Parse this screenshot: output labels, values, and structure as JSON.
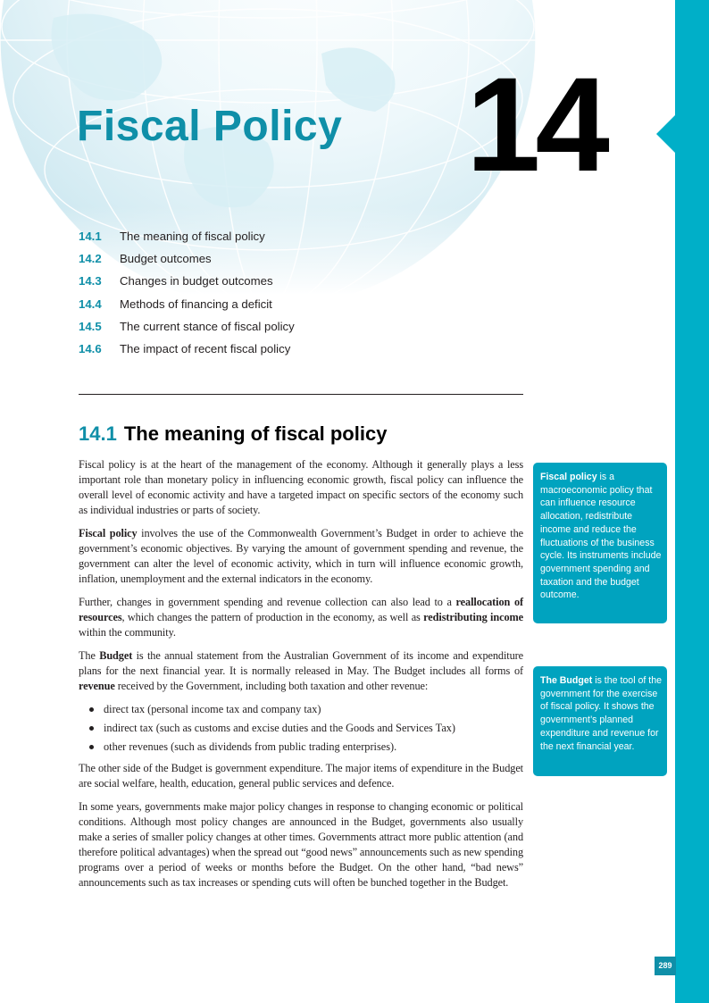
{
  "chapter": {
    "title": "Fiscal Policy",
    "number": "14"
  },
  "toc": [
    {
      "num": "14.1",
      "label": "The meaning of fiscal policy"
    },
    {
      "num": "14.2",
      "label": "Budget outcomes"
    },
    {
      "num": "14.3",
      "label": "Changes in budget outcomes"
    },
    {
      "num": "14.4",
      "label": "Methods of financing a deficit"
    },
    {
      "num": "14.5",
      "label": "The current stance of fiscal policy"
    },
    {
      "num": "14.6",
      "label": "The impact of recent fiscal policy"
    }
  ],
  "section": {
    "num": "14.1",
    "title": "The meaning of fiscal policy"
  },
  "paragraphs": {
    "p1": "Fiscal policy is at the heart of the management of the economy. Although it generally plays a less important role than monetary policy in influencing economic growth, fiscal policy can influence the overall level of economic activity and have a targeted impact on specific sectors of the economy such as individual industries or parts of society.",
    "p2_term": "Fiscal policy",
    "p2_rest": " involves the use of the Commonwealth Government’s Budget in order to achieve the government’s economic objectives. By varying the amount of government spending and revenue, the government can alter the level of economic activity, which in turn will influence economic growth, inflation, unemployment and the external indicators in the economy.",
    "p3_a": "Further, changes in government spending and revenue collection can also lead to a ",
    "p3_b": "reallocation of resources",
    "p3_c": ", which changes the pattern of production in the economy, as well as ",
    "p3_d": "redistributing income",
    "p3_e": " within the community.",
    "p4_a": "The ",
    "p4_b": "Budget",
    "p4_c": " is the annual statement from the Australian Government of its income and expenditure plans for the next financial year. It is normally released in May. The Budget includes all forms of ",
    "p4_d": "revenue",
    "p4_e": " received by the Government, including both taxation and other revenue:",
    "bullets": [
      "direct tax (personal income tax and company tax)",
      "indirect tax (such as customs and excise duties and the Goods and Services Tax)",
      "other revenues (such as dividends from public trading enterprises)."
    ],
    "p5": "The other side of the Budget is government expenditure. The major items of expenditure in the Budget are social welfare, health, education, general public services and defence.",
    "p6": "In some years, governments make major policy changes in response to changing economic or political conditions. Although most policy changes are announced in the Budget, governments also usually make a series of smaller policy changes at other times. Governments attract more public attention (and therefore political advantages) when the spread out “good news” announcements such as new spending programs over a period of weeks or months before the Budget. On the other hand, “bad news” announcements such as tax increases or spending cuts will often be bunched together in the Budget."
  },
  "definitions": [
    {
      "term": "Fiscal policy",
      "text": " is a macroeconomic policy that can influence resource allocation, redistribute income and reduce the fluctuations of the business cycle. Its instruments include government spending and taxation and the budget outcome."
    },
    {
      "term": "The Budget",
      "text": " is the tool of the government for the exercise of fiscal policy. It shows the government’s planned expenditure and revenue for the next financial year."
    }
  ],
  "page_number": "289",
  "colors": {
    "accent": "#0f8fa8",
    "bar": "#00afc8",
    "box": "#00a3bf"
  },
  "icons": {
    "background": "globe-graphic"
  }
}
